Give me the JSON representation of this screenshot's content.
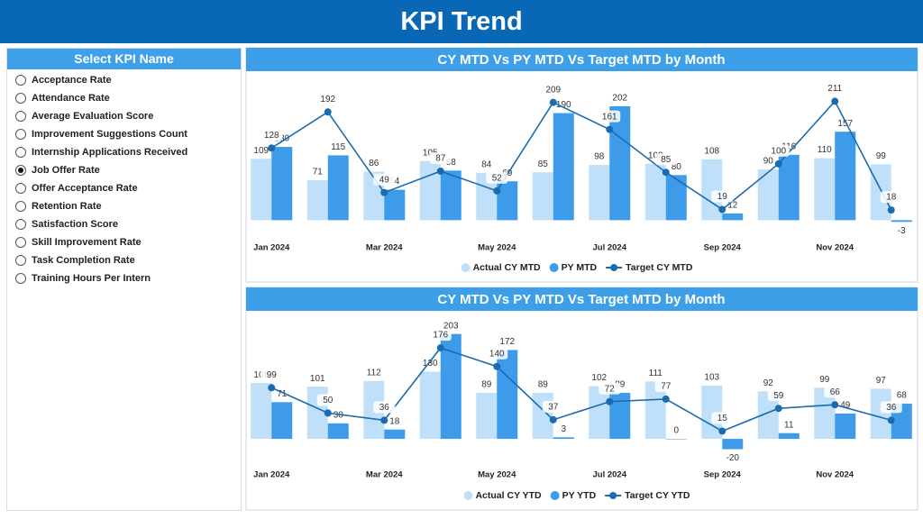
{
  "header": {
    "title": "KPI Trend"
  },
  "slicer": {
    "title": "Select KPI Name",
    "items": [
      {
        "label": "Acceptance Rate",
        "selected": false
      },
      {
        "label": "Attendance Rate",
        "selected": false
      },
      {
        "label": "Average Evaluation Score",
        "selected": false
      },
      {
        "label": "Improvement Suggestions Count",
        "selected": false
      },
      {
        "label": "Internship Applications Received",
        "selected": false
      },
      {
        "label": "Job Offer Rate",
        "selected": true
      },
      {
        "label": "Offer Acceptance Rate",
        "selected": false
      },
      {
        "label": "Retention Rate",
        "selected": false
      },
      {
        "label": "Satisfaction Score",
        "selected": false
      },
      {
        "label": "Skill Improvement Rate",
        "selected": false
      },
      {
        "label": "Task Completion Rate",
        "selected": false
      },
      {
        "label": "Training Hours Per Intern",
        "selected": false
      }
    ]
  },
  "chart_data": [
    {
      "type": "combo",
      "title": "CY MTD Vs PY MTD Vs Target MTD by Month",
      "categories": [
        "Jan 2024",
        null,
        "Mar 2024",
        null,
        "May 2024",
        null,
        "Jul 2024",
        null,
        "Sep 2024",
        null,
        "Nov 2024",
        null
      ],
      "ylim": [
        -25,
        250
      ],
      "series": [
        {
          "name": "Actual CY MTD",
          "type": "bar",
          "color": "#bfe0f8",
          "values": [
            109,
            71,
            86,
            105,
            84,
            85,
            98,
            100,
            108,
            90,
            110,
            99
          ]
        },
        {
          "name": "PY MTD",
          "type": "bar",
          "color": "#3d9be9",
          "values": [
            130,
            115,
            54,
            88,
            69,
            190,
            202,
            80,
            12,
            116,
            157,
            -3
          ]
        },
        {
          "name": "Target CY MTD",
          "type": "line",
          "color": "#1a6bb0",
          "values": [
            128,
            192,
            49,
            87,
            52,
            209,
            161,
            85,
            19,
            100,
            211,
            18
          ]
        }
      ]
    },
    {
      "type": "combo",
      "title": "CY MTD Vs PY MTD Vs Target MTD by Month",
      "categories": [
        "Jan 2024",
        null,
        "Mar 2024",
        null,
        "May 2024",
        null,
        "Jul 2024",
        null,
        "Sep 2024",
        null,
        "Nov 2024",
        null
      ],
      "ylim": [
        -40,
        225
      ],
      "series": [
        {
          "name": "Actual CY YTD",
          "type": "bar",
          "color": "#bfe0f8",
          "values": [
            108,
            101,
            112,
            130,
            89,
            89,
            102,
            111,
            103,
            92,
            99,
            97
          ]
        },
        {
          "name": "PY YTD",
          "type": "bar",
          "color": "#3d9be9",
          "values": [
            71,
            30,
            18,
            203,
            172,
            3,
            89,
            0,
            -20,
            11,
            49,
            68
          ]
        },
        {
          "name": "Target CY YTD",
          "type": "line",
          "color": "#1a6bb0",
          "values": [
            99,
            50,
            36,
            176,
            140,
            37,
            72,
            77,
            15,
            59,
            66,
            36
          ]
        }
      ]
    }
  ]
}
